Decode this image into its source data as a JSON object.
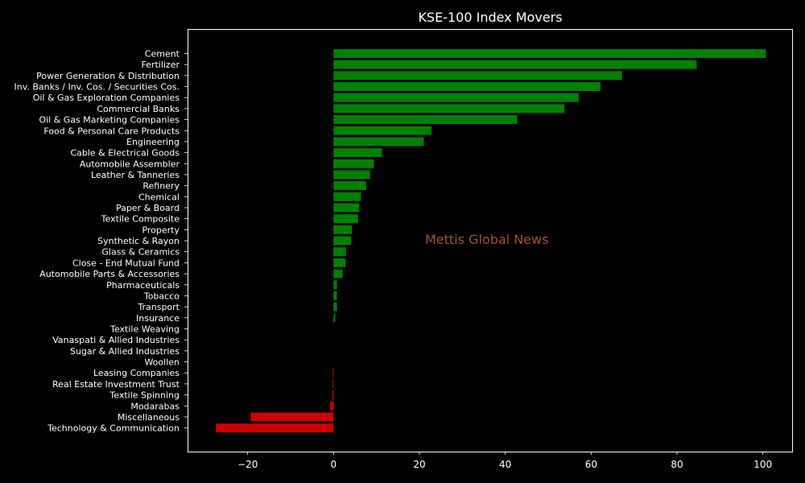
{
  "chart_data": {
    "type": "bar",
    "orientation": "horizontal",
    "title": "KSE-100 Index Movers",
    "watermark": "Mettis Global News",
    "xlabel": "",
    "ylabel": "",
    "xlim": [
      -34,
      107
    ],
    "xticks": [
      -20,
      0,
      20,
      40,
      60,
      80,
      100
    ],
    "xtick_labels": [
      "−20",
      "0",
      "20",
      "40",
      "60",
      "80",
      "100"
    ],
    "grid": false,
    "colors": {
      "positive": "#008000",
      "negative": "#cc0000",
      "background": "#000000",
      "axes": "#ffffff",
      "watermark": "#a0522d"
    },
    "categories": [
      "Cement",
      "Fertilizer",
      "Power Generation & Distribution",
      "Inv. Banks / Inv. Cos. / Securities Cos.",
      "Oil & Gas Exploration Companies",
      "Commercial Banks",
      "Oil & Gas Marketing Companies",
      "Food & Personal Care Products",
      "Engineering",
      "Cable & Electrical Goods",
      "Automobile Assembler",
      "Leather & Tanneries",
      "Refinery",
      "Chemical",
      "Paper & Board",
      "Textile Composite",
      "Property",
      "Synthetic & Rayon",
      "Glass & Ceramics",
      "Close - End Mutual Fund",
      "Automobile Parts & Accessories",
      "Pharmaceuticals",
      "Tobacco",
      "Transport",
      "Insurance",
      "Textile Weaving",
      "Vanaspati & Allied Industries",
      "Sugar & Allied Industries",
      "Woollen",
      "Leasing Companies",
      "Real Estate Investment Trust",
      "Textile Spinning",
      "Modarabas",
      "Miscellaneous",
      "Technology & Communication"
    ],
    "values": [
      100.7,
      84.6,
      67.2,
      62.2,
      57.1,
      53.8,
      42.8,
      22.8,
      21.0,
      11.3,
      9.4,
      8.5,
      7.6,
      6.4,
      6.0,
      5.7,
      4.3,
      4.1,
      2.9,
      2.8,
      2.1,
      0.8,
      0.8,
      0.8,
      0.4,
      0.0,
      0.0,
      0.0,
      0.0,
      -0.2,
      -0.2,
      -0.3,
      -0.8,
      -19.3,
      -27.4
    ]
  }
}
